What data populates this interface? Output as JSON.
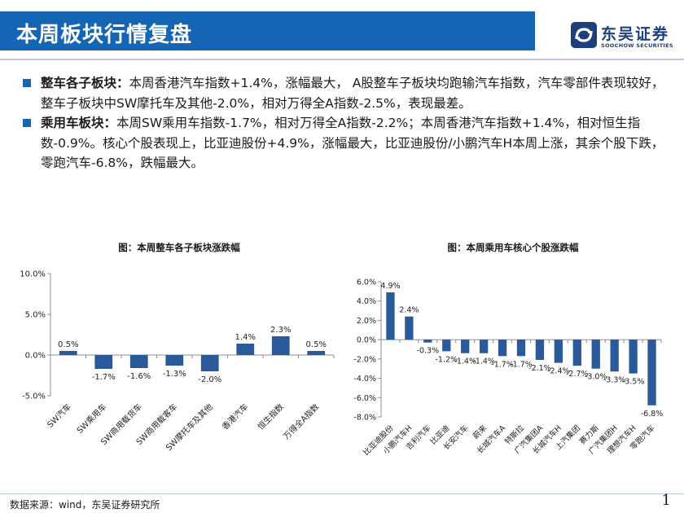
{
  "header": {
    "title": "本周板块行情复盘",
    "logo_cn": "东吴证券",
    "logo_en": "SOOCHOW SECURITIES"
  },
  "bullets": [
    {
      "lead": "整车各子板块：",
      "text": "本周香港汽车指数+1.4%，涨幅最大， A股整车子板块均跑输汽车指数，汽车零部件表现较好，整车子板块中SW摩托车及其他-2.0%，相对万得全A指数-2.5%，表现最差。"
    },
    {
      "lead": "乘用车板块：",
      "text": "本周SW乘用车指数-1.7%，相对万得全A指数-2.2%；本周香港汽车指数+1.4%，相对恒生指数-0.9%。核心个股表现上，比亚迪股份+4.9%，涨幅最大，比亚迪股份/小鹏汽车H本周上涨，其余个股下跌，零跑汽车-6.8%，跌幅最大。"
    }
  ],
  "chart_data": [
    {
      "type": "bar",
      "title": "图：本周整车各子板块涨跌幅",
      "categories": [
        "SW汽车",
        "SW乘用车",
        "SW商用载货车",
        "SW商用载客车",
        "SW摩托车及其他",
        "香港汽车",
        "恒生指数",
        "万得全A指数"
      ],
      "values": [
        0.5,
        -1.7,
        -1.6,
        -1.3,
        -2.0,
        1.4,
        2.3,
        0.5
      ],
      "labels": [
        "0.5%",
        "-1.7%",
        "-1.6%",
        "-1.3%",
        "-2.0%",
        "1.4%",
        "2.3%",
        "0.5%"
      ],
      "ylim": [
        -5,
        10
      ],
      "yticks": [
        -5,
        0,
        5,
        10
      ],
      "ytick_labels": [
        "-5.0%",
        "0.0%",
        "5.0%",
        "10.0%"
      ],
      "color": "#2b5a9a"
    },
    {
      "type": "bar",
      "title": "图：本周乘用车核心个股涨跌幅",
      "categories": [
        "比亚迪股份",
        "小鹏汽车H",
        "吉利汽车",
        "比亚迪",
        "长安汽车",
        "蔚来",
        "长城汽车A",
        "特斯拉",
        "广汽集团A",
        "长城汽车H",
        "上汽集团",
        "赛力斯",
        "广汽集团H",
        "理想汽车H",
        "零跑汽车"
      ],
      "values": [
        4.9,
        2.4,
        -0.3,
        -1.2,
        -1.4,
        -1.4,
        -1.7,
        -1.7,
        -2.1,
        -2.4,
        -2.7,
        -3.0,
        -3.3,
        -3.5,
        -6.8
      ],
      "labels": [
        "4.9%",
        "2.4%",
        "-0.3%",
        "-1.2%",
        "-1.4%",
        "-1.4%",
        "-1.7%",
        "-1.7%",
        "-2.1%",
        "-2.4%",
        "-2.7%",
        "-3.0%",
        "-3.3%",
        "-3.5%",
        "-6.8%"
      ],
      "ylim": [
        -8,
        6
      ],
      "yticks": [
        -8,
        -6,
        -4,
        -2,
        0,
        2,
        4,
        6
      ],
      "ytick_labels": [
        "-8.0%",
        "-6.0%",
        "-4.0%",
        "-2.0%",
        "0.0%",
        "2.0%",
        "4.0%",
        "6.0%"
      ],
      "color": "#2b5a9a"
    }
  ],
  "footer": {
    "source": "数据来源：wind，东吴证券研究所",
    "page": "1"
  }
}
